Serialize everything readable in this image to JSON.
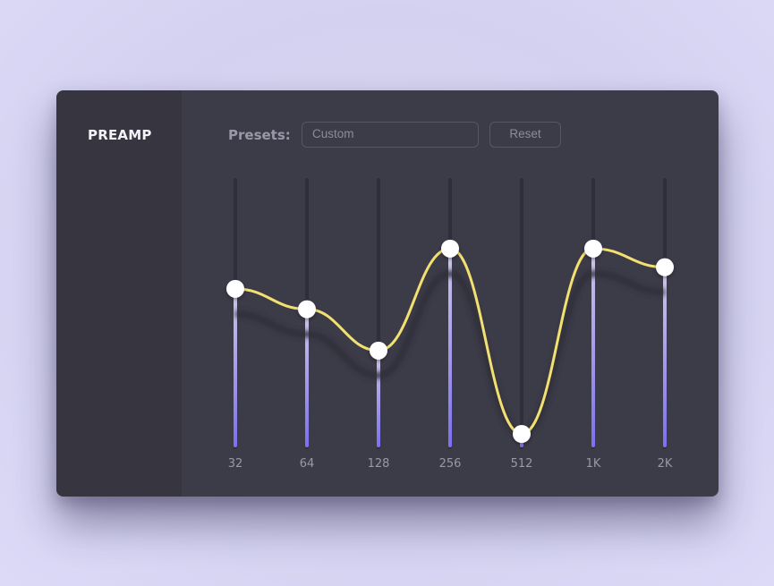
{
  "sidebar": {
    "title": "PREAMP"
  },
  "toolbar": {
    "presets_label": "Presets:",
    "preset_value": "Custom",
    "reset_label": "Reset"
  },
  "equalizer": {
    "bands": [
      {
        "label": "32",
        "level": 0.67
      },
      {
        "label": "64",
        "level": 0.576
      },
      {
        "label": "128",
        "level": 0.385
      },
      {
        "label": "256",
        "level": 0.856
      },
      {
        "label": "512",
        "level": 0.0
      },
      {
        "label": "1K",
        "level": 0.856
      },
      {
        "label": "2K",
        "level": 0.77
      }
    ],
    "colors": {
      "curve": "#f2e070",
      "handle": "#ffffff",
      "track": "#2f2e3a",
      "fill_top": "#cfc9e6",
      "fill_bottom": "#7d6ff0"
    }
  }
}
